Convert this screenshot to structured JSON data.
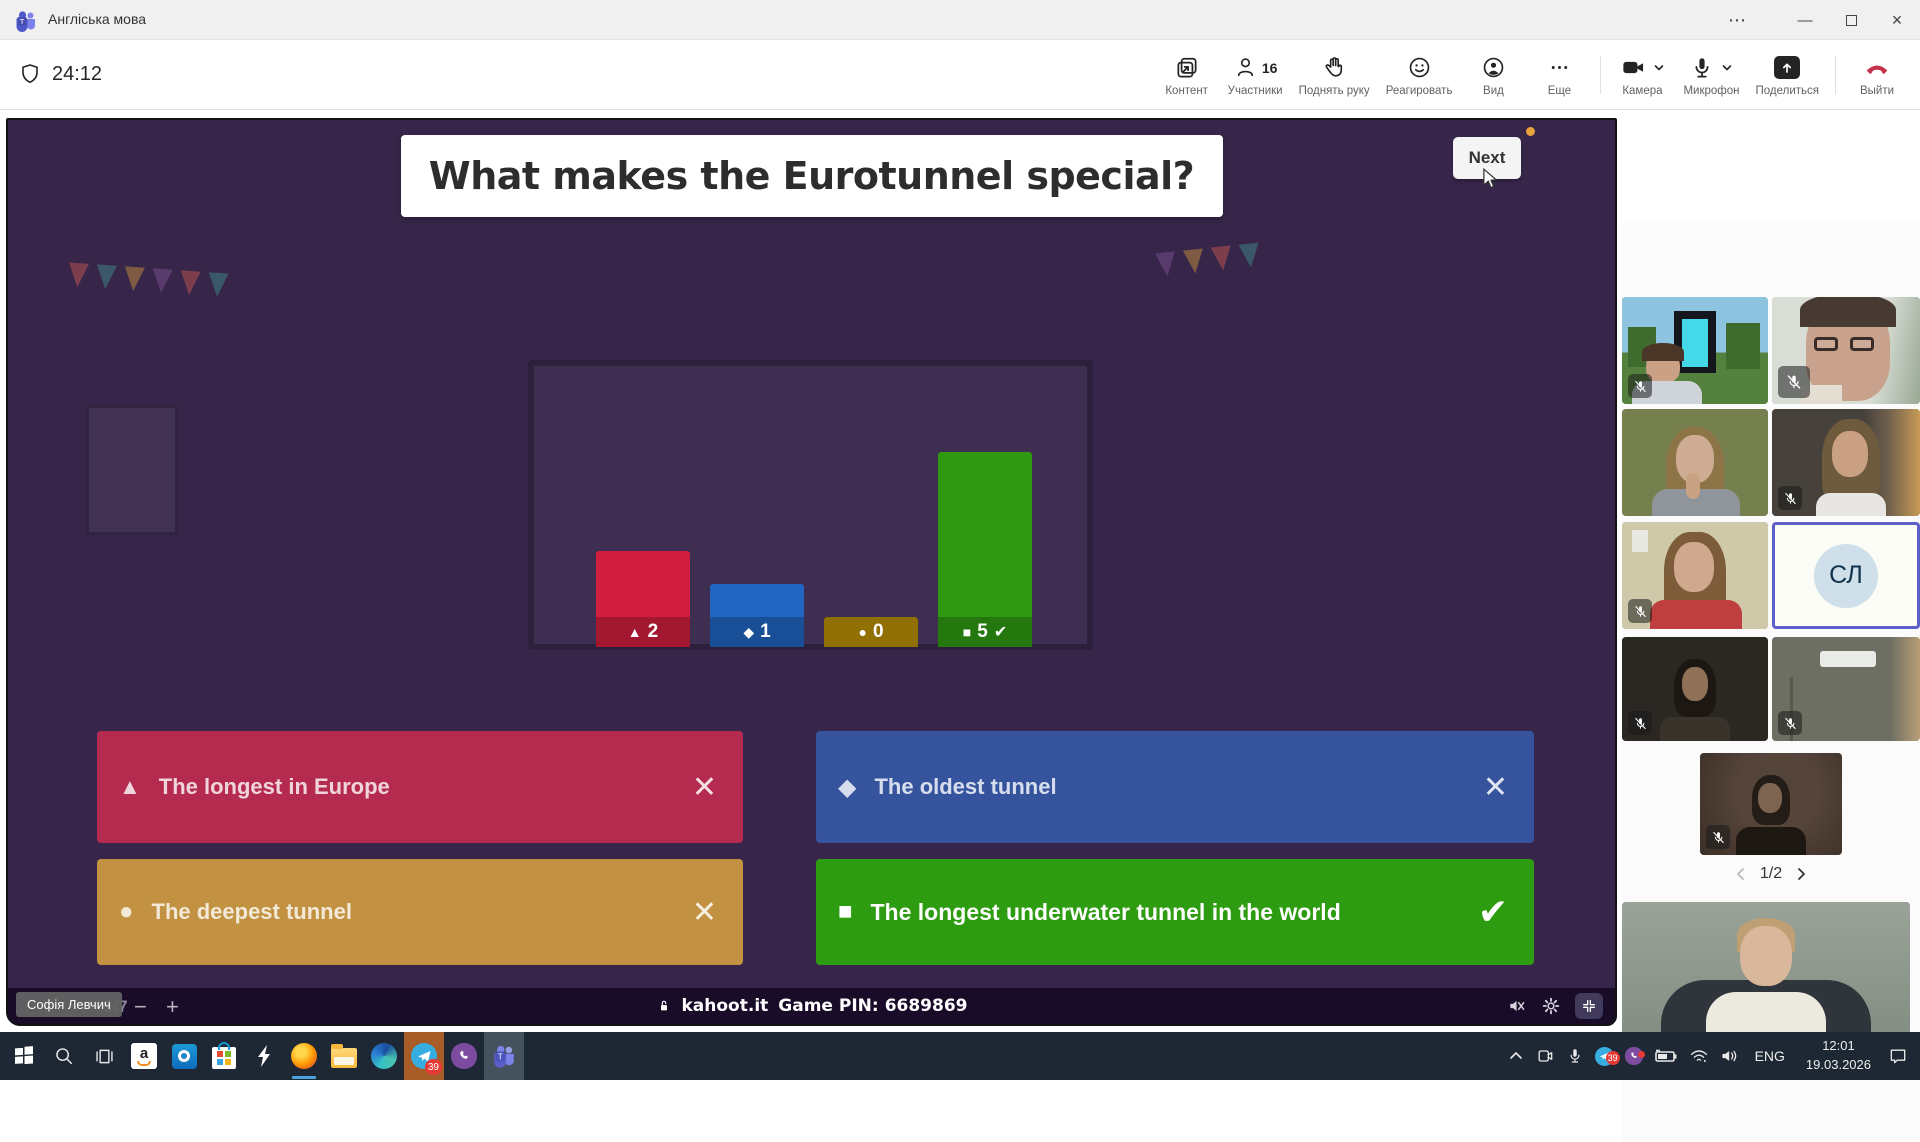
{
  "titlebar": {
    "app_title": "Англіська мова"
  },
  "icons": {
    "more": "⋯",
    "minimize": "—",
    "close": "×",
    "cross": "✕",
    "check": "✔",
    "minus": "−",
    "plus": "+"
  },
  "toolbar": {
    "timer": "24:12",
    "items": [
      {
        "label": "Контент"
      },
      {
        "label": "Участники",
        "badge": "16"
      },
      {
        "label": "Поднять руку"
      },
      {
        "label": "Реагировать"
      },
      {
        "label": "Вид"
      },
      {
        "label": "Еще"
      },
      {
        "label": "Камера"
      },
      {
        "label": "Микрофон"
      },
      {
        "label": "Поделиться"
      },
      {
        "label": "Выйти"
      }
    ]
  },
  "kahoot": {
    "question": "What makes the Eurotunnel special?",
    "next_label": "Next",
    "progress": "5/7",
    "name_tooltip": "Софія Левчич",
    "footer_site": "kahoot.it",
    "footer_pin_label": "Game PIN:",
    "footer_pin": "6689869",
    "chart_data": {
      "type": "bar",
      "title": "What makes the Eurotunnel special?",
      "categories": [
        "triangle",
        "diamond",
        "circle",
        "square"
      ],
      "values": [
        2,
        1,
        0,
        5
      ],
      "labels": [
        "2",
        "1",
        "0",
        "5"
      ],
      "series_colors": [
        "#d11e3f",
        "#2166c2",
        "#b98f05",
        "#2f9a11"
      ],
      "correct_index": 3,
      "ylim": [
        0,
        5
      ],
      "grid": false,
      "legend": false
    },
    "answers": [
      {
        "shape": "triangle",
        "symbol": "▲",
        "text": "The longest in Europe",
        "correct": false,
        "color": "#b52b50"
      },
      {
        "shape": "diamond",
        "symbol": "◆",
        "text": "The oldest tunnel",
        "correct": false,
        "color": "#36549e"
      },
      {
        "shape": "circle",
        "symbol": "●",
        "text": "The deepest tunnel",
        "correct": false,
        "color": "#c29141"
      },
      {
        "shape": "square",
        "symbol": "■",
        "text": "The longest underwater tunnel in the world",
        "correct": true,
        "color": "#2e9c10"
      }
    ]
  },
  "sidebar": {
    "avatar_initials": "СЛ",
    "pagination": "1/2"
  },
  "taskbar": {
    "telegram_badge": "39",
    "tray": {
      "lang": "ENG",
      "time": "12:01",
      "date": "19.03.2026"
    }
  }
}
